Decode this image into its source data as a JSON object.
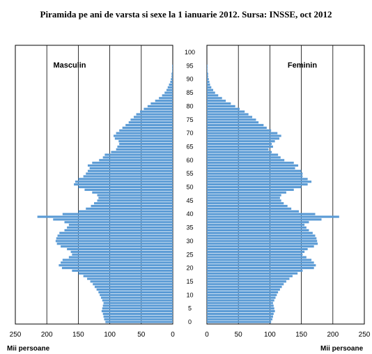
{
  "chart_data": {
    "type": "bar",
    "orientation": "horizontal",
    "layout": "population-pyramid",
    "title": "Piramida pe ani de varsta si sexe la 1 ianuarie 2012. Sursa: INSSE, oct 2012",
    "panels": {
      "left": {
        "label": "Masculin",
        "xlabel": "Mii persoane",
        "xticks": [
          "250",
          "200",
          "150",
          "100",
          "50",
          "0"
        ]
      },
      "right": {
        "label": "Feminin",
        "xlabel": "Mii persoane",
        "xticks": [
          "0",
          "50",
          "100",
          "150",
          "200",
          "250"
        ]
      }
    },
    "xlim": [
      0,
      250
    ],
    "age_ticks": [
      "0",
      "5",
      "10",
      "15",
      "20",
      "25",
      "30",
      "35",
      "40",
      "45",
      "50",
      "55",
      "60",
      "65",
      "70",
      "75",
      "80",
      "85",
      "90",
      "95",
      "100"
    ],
    "ages": [
      0,
      1,
      2,
      3,
      4,
      5,
      6,
      7,
      8,
      9,
      10,
      11,
      12,
      13,
      14,
      15,
      16,
      17,
      18,
      19,
      20,
      21,
      22,
      23,
      24,
      25,
      26,
      27,
      28,
      29,
      30,
      31,
      32,
      33,
      34,
      35,
      36,
      37,
      38,
      39,
      40,
      41,
      42,
      43,
      44,
      45,
      46,
      47,
      48,
      49,
      50,
      51,
      52,
      53,
      54,
      55,
      56,
      57,
      58,
      59,
      60,
      61,
      62,
      63,
      64,
      65,
      66,
      67,
      68,
      69,
      70,
      71,
      72,
      73,
      74,
      75,
      76,
      77,
      78,
      79,
      80,
      81,
      82,
      83,
      84,
      85,
      86,
      87,
      88,
      89,
      90,
      91,
      92,
      93,
      94,
      95,
      96,
      97,
      98,
      99,
      100
    ],
    "series": [
      {
        "name": "Masculin",
        "color": "#5b9bd5",
        "values": [
          107,
          109,
          110,
          111,
          113,
          112,
          111,
          110,
          112,
          114,
          116,
          118,
          121,
          124,
          127,
          131,
          136,
          142,
          150,
          160,
          176,
          181,
          178,
          175,
          165,
          160,
          162,
          168,
          178,
          184,
          186,
          185,
          183,
          180,
          172,
          168,
          165,
          172,
          190,
          215,
          175,
          150,
          138,
          130,
          125,
          120,
          118,
          120,
          128,
          140,
          150,
          157,
          155,
          150,
          142,
          138,
          135,
          132,
          135,
          128,
          117,
          111,
          108,
          98,
          90,
          88,
          85,
          86,
          92,
          94,
          90,
          85,
          80,
          75,
          70,
          67,
          62,
          58,
          52,
          46,
          40,
          35,
          28,
          22,
          17,
          13,
          10,
          8,
          6,
          4,
          3,
          2,
          2,
          1,
          1,
          1,
          0,
          0,
          0,
          0,
          0
        ]
      },
      {
        "name": "Feminin",
        "color": "#5b9bd5",
        "values": [
          102,
          104,
          105,
          106,
          108,
          107,
          106,
          105,
          107,
          109,
          111,
          113,
          116,
          119,
          122,
          126,
          131,
          136,
          144,
          152,
          170,
          173,
          170,
          166,
          158,
          152,
          155,
          160,
          170,
          176,
          175,
          174,
          172,
          168,
          162,
          158,
          155,
          162,
          182,
          210,
          172,
          146,
          134,
          128,
          122,
          118,
          116,
          118,
          126,
          138,
          150,
          160,
          166,
          160,
          152,
          152,
          150,
          140,
          145,
          138,
          123,
          117,
          113,
          103,
          98,
          105,
          103,
          108,
          115,
          118,
          112,
          102,
          95,
          90,
          82,
          78,
          72,
          66,
          60,
          52,
          45,
          38,
          30,
          24,
          18,
          13,
          10,
          7,
          5,
          4,
          3,
          2,
          2,
          1,
          1,
          1,
          0,
          0,
          0,
          0,
          0
        ]
      }
    ]
  }
}
